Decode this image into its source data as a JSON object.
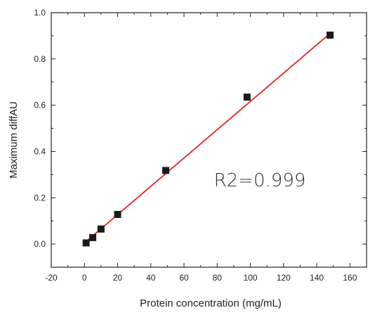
{
  "chart_data": {
    "type": "scatter",
    "xlabel": "Protein concentration (mg/mL)",
    "ylabel": "Maximum diffAU",
    "xlim": [
      -20,
      170
    ],
    "ylim": [
      -0.1,
      1.0
    ],
    "x_ticks": [
      -20,
      0,
      20,
      40,
      60,
      80,
      100,
      120,
      140,
      160
    ],
    "y_ticks": [
      0.0,
      0.2,
      0.4,
      0.6,
      0.8,
      1.0
    ],
    "x_tick_labels": [
      "-20",
      "0",
      "20",
      "40",
      "60",
      "80",
      "100",
      "120",
      "140",
      "160"
    ],
    "y_tick_labels": [
      "0.0",
      "0.2",
      "0.4",
      "0.6",
      "0.8",
      "1.0"
    ],
    "grid": false,
    "series": [
      {
        "x": [
          1,
          5,
          10,
          20,
          49,
          98,
          148
        ],
        "y": [
          0.005,
          0.028,
          0.065,
          0.128,
          0.318,
          0.635,
          0.903
        ],
        "marker": "square",
        "color": "#1a1a1a"
      }
    ],
    "fit_line": {
      "x": [
        0,
        148
      ],
      "y": [
        0.005,
        0.91
      ],
      "color": "#e8231d"
    },
    "annotations": [
      {
        "text": "R2=0.999",
        "x": 78,
        "y": 0.25
      }
    ]
  }
}
